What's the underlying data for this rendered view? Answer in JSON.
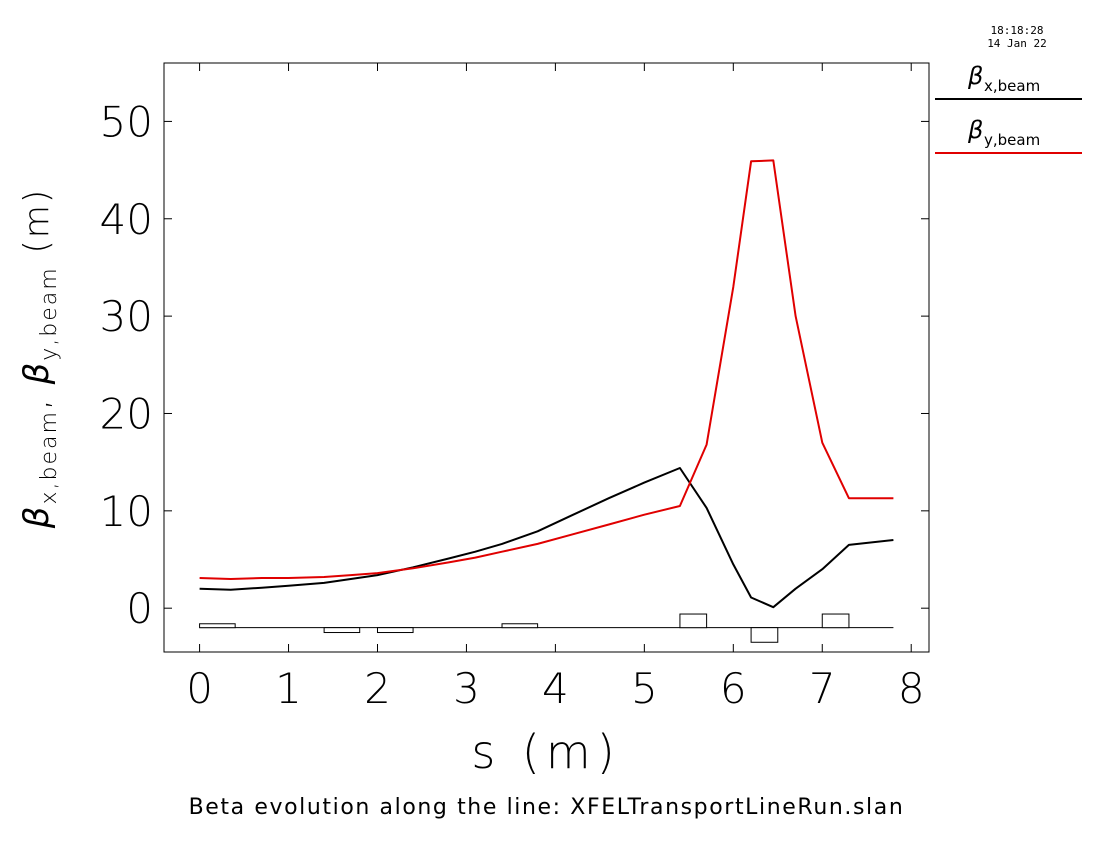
{
  "timestamp": {
    "time": "18:18:28",
    "date": "14 Jan 22"
  },
  "caption": "Beta evolution along the line: XFELTransportLineRun.slan",
  "colors": {
    "beta_x": "#000000",
    "beta_y": "#e00000",
    "axes": "#000000"
  },
  "chart_data": {
    "type": "line",
    "xlabel": "s (m)",
    "ylabel": "βx,beam, βy,beam (m)",
    "xlim": [
      -0.4,
      8.2
    ],
    "ylim": [
      -4.5,
      56
    ],
    "xticks": [
      0,
      1,
      2,
      3,
      4,
      5,
      6,
      7,
      8
    ],
    "yticks": [
      0,
      10,
      20,
      30,
      40,
      50
    ],
    "grid": false,
    "legend_position": "top-right, outside plot",
    "series": [
      {
        "name": "βx,beam",
        "legend": {
          "symbol": "β",
          "subscript": "x,beam"
        },
        "color": "#000000",
        "x": [
          0,
          0.35,
          0.7,
          1.0,
          1.4,
          1.7,
          2.0,
          2.4,
          2.8,
          3.1,
          3.4,
          3.8,
          4.2,
          4.6,
          5.0,
          5.4,
          5.7,
          6.0,
          6.2,
          6.45,
          6.7,
          7.0,
          7.3,
          7.8
        ],
        "values": [
          2.0,
          1.9,
          2.1,
          2.3,
          2.6,
          3.0,
          3.4,
          4.2,
          5.1,
          5.8,
          6.6,
          7.9,
          9.6,
          11.3,
          12.9,
          14.4,
          10.3,
          4.5,
          1.1,
          0.1,
          2.0,
          4.0,
          6.5,
          7.0
        ]
      },
      {
        "name": "βy,beam",
        "legend": {
          "symbol": "β",
          "subscript": "y,beam"
        },
        "color": "#e00000",
        "x": [
          0,
          0.35,
          0.7,
          1.0,
          1.4,
          1.7,
          2.0,
          2.4,
          2.8,
          3.1,
          3.4,
          3.8,
          4.2,
          4.6,
          5.0,
          5.4,
          5.7,
          6.0,
          6.2,
          6.45,
          6.7,
          7.0,
          7.3,
          7.8
        ],
        "values": [
          3.1,
          3.0,
          3.1,
          3.1,
          3.2,
          3.4,
          3.6,
          4.1,
          4.7,
          5.2,
          5.8,
          6.6,
          7.6,
          8.6,
          9.6,
          10.5,
          16.8,
          33.0,
          45.9,
          46.0,
          30.0,
          17.0,
          11.3,
          11.3
        ]
      }
    ],
    "lattice": {
      "baseline": -2.0,
      "elements": [
        {
          "start": 0.0,
          "end": 0.4,
          "height": 0.4
        },
        {
          "start": 1.4,
          "end": 1.8,
          "height": -0.5
        },
        {
          "start": 2.0,
          "end": 2.4,
          "height": -0.5
        },
        {
          "start": 3.4,
          "end": 3.8,
          "height": 0.4
        },
        {
          "start": 5.4,
          "end": 5.7,
          "height": 1.4
        },
        {
          "start": 6.2,
          "end": 6.5,
          "height": -1.5
        },
        {
          "start": 7.0,
          "end": 7.3,
          "height": 1.4
        }
      ]
    }
  }
}
